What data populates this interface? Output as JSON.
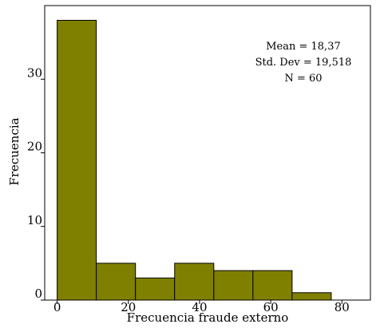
{
  "chart_data": {
    "type": "bar",
    "subtype": "histogram",
    "xlabel": "Frecuencia fraude externo",
    "ylabel": "Frecuencia",
    "bin_width": 11,
    "bins": [
      {
        "start": 0,
        "end": 11,
        "count": 38
      },
      {
        "start": 11,
        "end": 22,
        "count": 5
      },
      {
        "start": 22,
        "end": 33,
        "count": 3
      },
      {
        "start": 33,
        "end": 44,
        "count": 5
      },
      {
        "start": 44,
        "end": 55,
        "count": 4
      },
      {
        "start": 55,
        "end": 66,
        "count": 4
      },
      {
        "start": 66,
        "end": 77,
        "count": 1
      }
    ],
    "xlim": [
      -3.5,
      88
    ],
    "ylim": [
      0,
      40
    ],
    "x_ticks": [
      0,
      20,
      40,
      60,
      80
    ],
    "y_ticks": [
      0,
      10,
      20,
      30
    ],
    "grid": false,
    "bar_color": "#808000",
    "stats": {
      "mean": "Mean = 18,37",
      "std_dev": "Std. Dev = 19,518",
      "n": "N = 60"
    }
  }
}
